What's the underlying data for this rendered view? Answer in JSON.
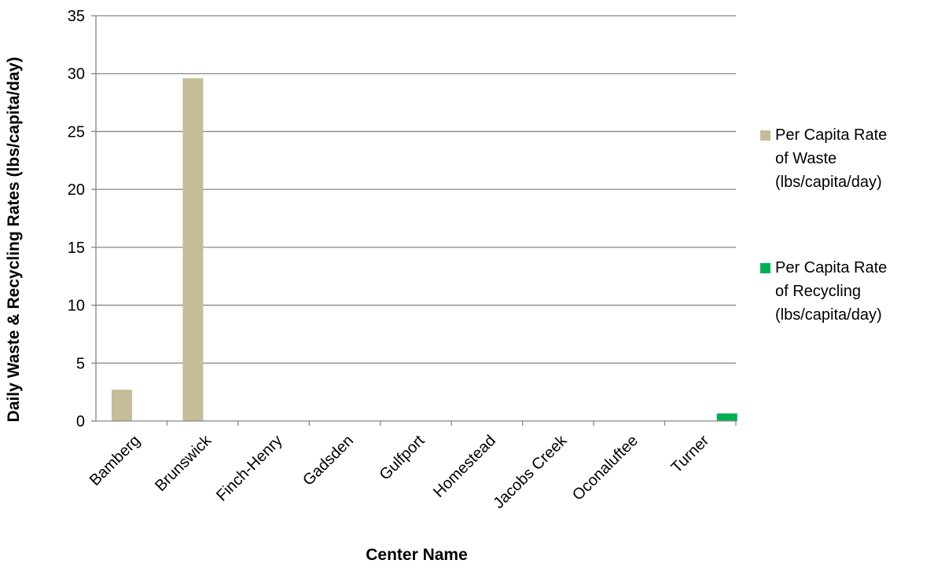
{
  "chart_data": {
    "type": "bar",
    "title": "",
    "xlabel": "Center Name",
    "ylabel": "Daily Waste & Recycling Rates (lbs/capita/day)",
    "categories": [
      "Bamberg",
      "Brunswick",
      "Finch-Henry",
      "Gadsden",
      "Gulfport",
      "Homestead",
      "Jacobs Creek",
      "Oconaluftee",
      "Turner"
    ],
    "ylim": [
      0,
      35
    ],
    "yticks": [
      0,
      5,
      10,
      15,
      20,
      25,
      30,
      35
    ],
    "grid": true,
    "legend_position": "right",
    "series": [
      {
        "name": "Per Capita Rate of Waste (lbs/capita/day)",
        "legend_lines": [
          "Per Capita Rate",
          "of Waste",
          "(lbs/capita/day)"
        ],
        "color": "#c4bd97",
        "values": [
          2.7,
          29.6,
          0,
          0,
          0,
          0,
          0,
          0,
          0
        ]
      },
      {
        "name": "Per Capita Rate of Recycling (lbs/capita/day)",
        "legend_lines": [
          "Per Capita Rate",
          "of Recycling",
          "(lbs/capita/day)"
        ],
        "color": "#00b050",
        "values": [
          0,
          0,
          0,
          0,
          0,
          0,
          0,
          0,
          0.65
        ]
      }
    ]
  }
}
